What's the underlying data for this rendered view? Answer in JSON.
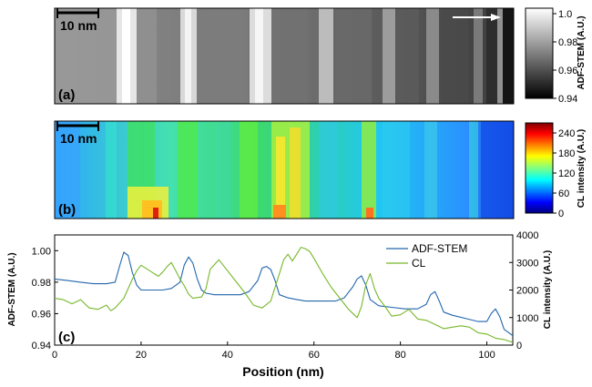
{
  "panel_a": {
    "label": "(a)",
    "scalebar_label": "10 nm",
    "colorbar": {
      "label": "ADF-STEM (A.U.)",
      "ticks": [
        0.94,
        0.96,
        0.98,
        1.0
      ],
      "tick_labels": [
        "0.94",
        "0.96",
        "0.98",
        "1.0"
      ],
      "range": [
        0.94,
        1.0
      ]
    },
    "direction_arrow": "right"
  },
  "panel_b": {
    "label": "(b)",
    "scalebar_label": "10 nm",
    "colorbar": {
      "label": "CL intensity (A.U.)",
      "ticks": [
        0,
        60,
        120,
        180,
        240
      ],
      "tick_labels": [
        "0",
        "60",
        "120",
        "180",
        "240"
      ],
      "range": [
        0,
        270
      ]
    }
  },
  "panel_c": {
    "label": "(c)"
  },
  "chart_data": {
    "type": "line",
    "xlabel": "Position (nm)",
    "ylabel": "ADF-STEM (A.U.)",
    "y2label": "CL intensity (A.U.)",
    "xlim": [
      0,
      106
    ],
    "ylim": [
      0.94,
      1.01
    ],
    "y2lim": [
      0,
      4000
    ],
    "xticks": [
      0,
      20,
      40,
      60,
      80,
      100
    ],
    "yticks": [
      0.94,
      0.96,
      0.98,
      1.0
    ],
    "ytick_labels": [
      "0.94",
      "0.96",
      "0.98",
      "1.00"
    ],
    "y2ticks": [
      0,
      1000,
      2000,
      3000,
      4000
    ],
    "legend_position": "top-right",
    "series": [
      {
        "name": "ADF-STEM",
        "axis": "left",
        "color": "#2166ac",
        "x": [
          0,
          3,
          6,
          9,
          12,
          14,
          15,
          16,
          17,
          18,
          19,
          20,
          22,
          25,
          27,
          29,
          30,
          31,
          32,
          33,
          34,
          35,
          37,
          40,
          43,
          45,
          47,
          48,
          49,
          50,
          51,
          52,
          54,
          56,
          58,
          60,
          62,
          65,
          67,
          69,
          70,
          71,
          72,
          73,
          75,
          78,
          81,
          84,
          86,
          87,
          88,
          89,
          90,
          92,
          95,
          98,
          100,
          101,
          102,
          103,
          104,
          106
        ],
        "y": [
          0.982,
          0.981,
          0.98,
          0.979,
          0.979,
          0.98,
          0.99,
          0.999,
          0.997,
          0.986,
          0.978,
          0.975,
          0.975,
          0.975,
          0.976,
          0.98,
          0.991,
          0.996,
          0.992,
          0.982,
          0.975,
          0.973,
          0.972,
          0.972,
          0.972,
          0.974,
          0.981,
          0.989,
          0.99,
          0.988,
          0.981,
          0.972,
          0.97,
          0.969,
          0.968,
          0.968,
          0.968,
          0.968,
          0.97,
          0.977,
          0.982,
          0.984,
          0.978,
          0.969,
          0.965,
          0.964,
          0.963,
          0.963,
          0.966,
          0.972,
          0.974,
          0.968,
          0.961,
          0.959,
          0.957,
          0.955,
          0.955,
          0.96,
          0.963,
          0.958,
          0.95,
          0.946
        ]
      },
      {
        "name": "CL",
        "axis": "right",
        "color": "#76b82a",
        "x": [
          0,
          2,
          4,
          6,
          8,
          10,
          12,
          13,
          14,
          16,
          17,
          18,
          19,
          20,
          21,
          22,
          23,
          24,
          25,
          26,
          27,
          28,
          29,
          30,
          31,
          32,
          34,
          35,
          36,
          38,
          40,
          42,
          44,
          46,
          48,
          50,
          51,
          52,
          53,
          54,
          55,
          56,
          57,
          58,
          59,
          60,
          62,
          64,
          66,
          68,
          70,
          71,
          72,
          73,
          74,
          75,
          76,
          78,
          80,
          82,
          84,
          86,
          88,
          90,
          92,
          94,
          96,
          98,
          100,
          102,
          104,
          106
        ],
        "y": [
          1700,
          1650,
          1500,
          1650,
          1350,
          1300,
          1450,
          1250,
          1350,
          1700,
          2050,
          2400,
          2700,
          2900,
          2800,
          2700,
          2600,
          2500,
          2650,
          2850,
          3000,
          2700,
          2400,
          2150,
          1850,
          1700,
          1750,
          2050,
          2750,
          3100,
          2700,
          2300,
          1900,
          1450,
          1350,
          1600,
          2100,
          2600,
          3100,
          3300,
          3050,
          3300,
          3550,
          3500,
          3400,
          3150,
          2600,
          2100,
          1700,
          1300,
          1000,
          1400,
          2200,
          2600,
          2050,
          1700,
          1500,
          1050,
          1100,
          1300,
          950,
          900,
          750,
          600,
          650,
          700,
          650,
          450,
          400,
          250,
          200,
          100
        ]
      }
    ]
  }
}
